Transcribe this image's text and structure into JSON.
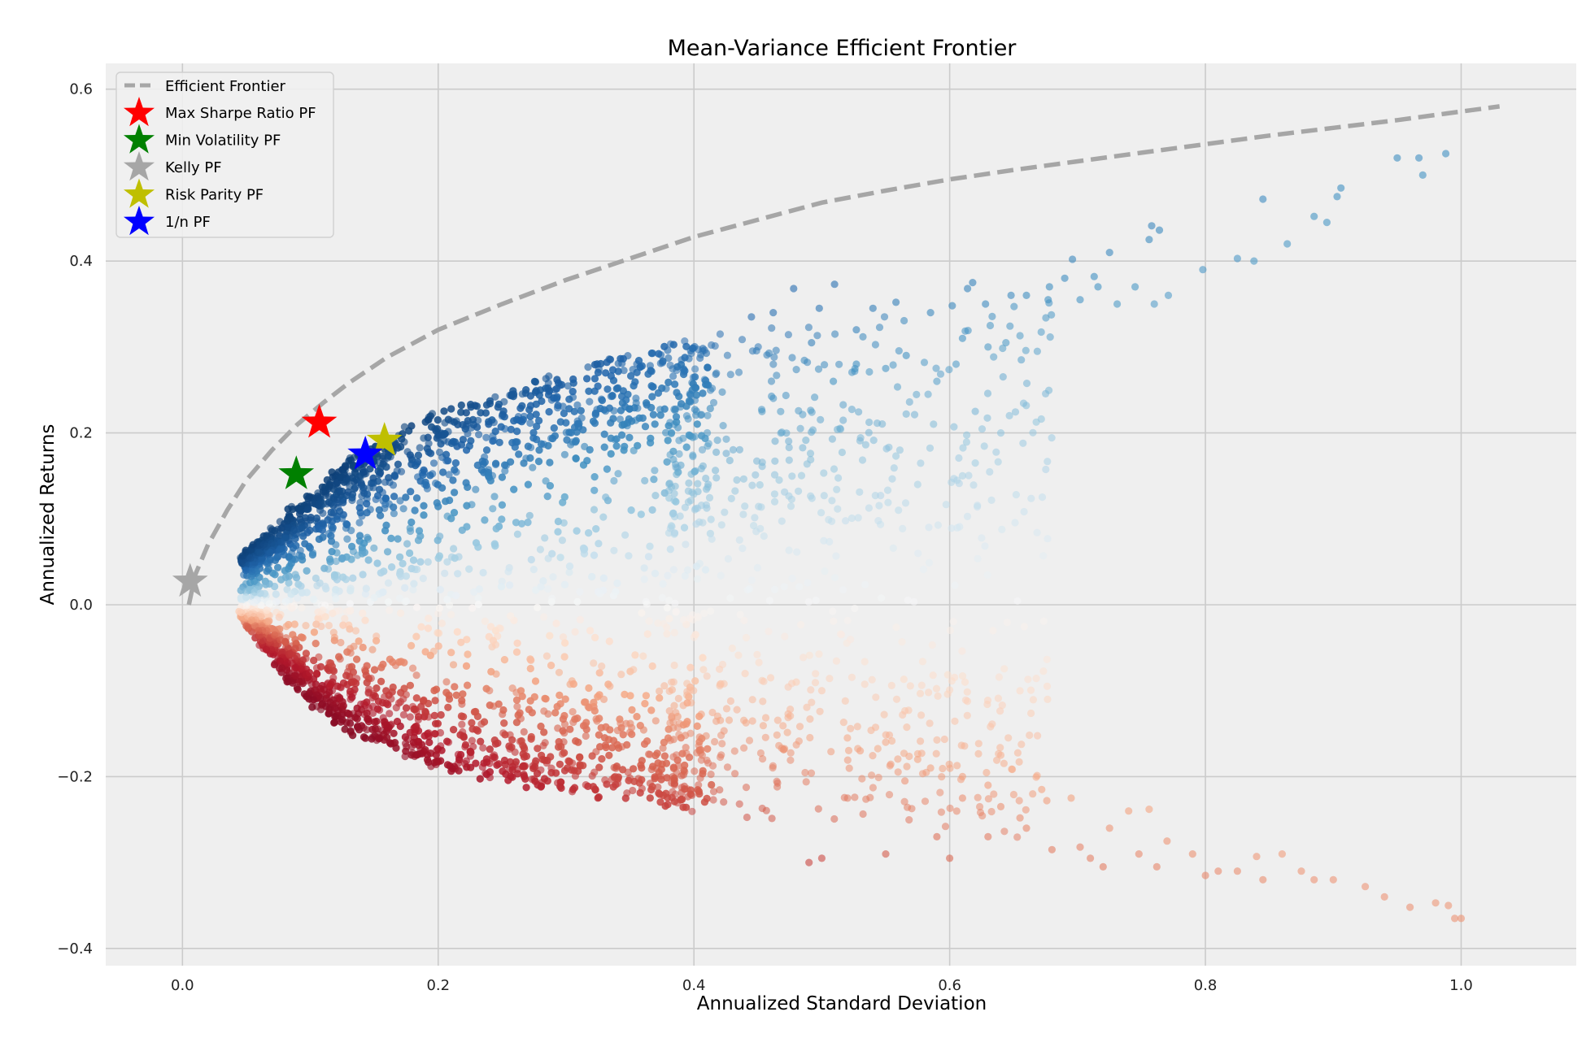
{
  "chart_data": {
    "type": "scatter",
    "title": "Mean-Variance Efficient Frontier",
    "xlabel": "Annualized Standard Deviation",
    "ylabel": "Annualized Returns",
    "xlim": [
      -0.06,
      1.09
    ],
    "ylim": [
      -0.42,
      0.63
    ],
    "x_ticks": [
      0.0,
      0.2,
      0.4,
      0.6,
      0.8,
      1.0
    ],
    "x_tick_labels": [
      "0.0",
      "0.2",
      "0.4",
      "0.6",
      "0.8",
      "1.0"
    ],
    "y_ticks": [
      -0.4,
      -0.2,
      0.0,
      0.2,
      0.4,
      0.6
    ],
    "y_tick_labels": [
      "−0.4",
      "−0.2",
      "0.0",
      "0.2",
      "0.4",
      "0.6"
    ],
    "grid": true,
    "legend_position": "top-left",
    "colormap": "RdBu",
    "colors": {
      "plot_background": "#efefef",
      "grid": "#cbcbcb",
      "frontier": "#a6a6a6",
      "max_sharpe": "#ff0000",
      "min_volatility": "#008000",
      "kelly": "#a6a6a6",
      "risk_parity": "#bfbf00",
      "one_over_n": "#0000ff"
    },
    "frontier": {
      "name": "Efficient Frontier",
      "x": [
        0.005,
        0.01,
        0.02,
        0.035,
        0.05,
        0.07,
        0.09,
        0.11,
        0.13,
        0.16,
        0.2,
        0.25,
        0.3,
        0.35,
        0.4,
        0.45,
        0.5,
        0.55,
        0.6,
        0.65,
        0.7,
        0.75,
        0.8,
        0.85,
        0.9,
        0.95,
        1.0,
        1.03
      ],
      "y": [
        0.0,
        0.035,
        0.07,
        0.11,
        0.145,
        0.18,
        0.21,
        0.235,
        0.258,
        0.288,
        0.32,
        0.35,
        0.378,
        0.403,
        0.428,
        0.448,
        0.468,
        0.482,
        0.495,
        0.506,
        0.516,
        0.526,
        0.536,
        0.546,
        0.555,
        0.564,
        0.574,
        0.58
      ]
    },
    "highlighted_portfolios": [
      {
        "name": "Max Sharpe Ratio PF",
        "x": 0.107,
        "y": 0.212,
        "color": "#ff0000"
      },
      {
        "name": "Min Volatility PF",
        "x": 0.089,
        "y": 0.152,
        "color": "#008000"
      },
      {
        "name": "Kelly PF",
        "x": 0.006,
        "y": 0.027,
        "color": "#a6a6a6"
      },
      {
        "name": "Risk Parity PF",
        "x": 0.158,
        "y": 0.191,
        "color": "#bfbf00"
      },
      {
        "name": "1/n PF",
        "x": 0.143,
        "y": 0.175,
        "color": "#0000ff"
      }
    ],
    "random_portfolios": {
      "envelope_upper": {
        "x": [
          0.05,
          0.07,
          0.1,
          0.14,
          0.2,
          0.26,
          0.33,
          0.4
        ],
        "y": [
          0.06,
          0.085,
          0.13,
          0.18,
          0.225,
          0.255,
          0.285,
          0.31
        ]
      },
      "envelope_lower": {
        "x": [
          0.05,
          0.07,
          0.1,
          0.14,
          0.2,
          0.26,
          0.33,
          0.4
        ],
        "y": [
          -0.015,
          -0.06,
          -0.115,
          -0.155,
          -0.19,
          -0.21,
          -0.225,
          -0.24
        ]
      },
      "sparse_points": [
        [
          0.95,
          0.52
        ],
        [
          0.967,
          0.52
        ],
        [
          0.97,
          0.5
        ],
        [
          0.988,
          0.525
        ],
        [
          0.906,
          0.485
        ],
        [
          0.903,
          0.475
        ],
        [
          0.845,
          0.472
        ],
        [
          0.885,
          0.452
        ],
        [
          0.895,
          0.445
        ],
        [
          0.864,
          0.42
        ],
        [
          0.825,
          0.403
        ],
        [
          0.838,
          0.4
        ],
        [
          0.798,
          0.39
        ],
        [
          0.758,
          0.441
        ],
        [
          0.764,
          0.436
        ],
        [
          0.756,
          0.425
        ],
        [
          0.725,
          0.41
        ],
        [
          0.713,
          0.382
        ],
        [
          0.696,
          0.402
        ],
        [
          0.69,
          0.38
        ],
        [
          0.678,
          0.37
        ],
        [
          0.745,
          0.37
        ],
        [
          0.731,
          0.35
        ],
        [
          0.771,
          0.36
        ],
        [
          0.76,
          0.35
        ],
        [
          0.702,
          0.355
        ],
        [
          0.716,
          0.37
        ],
        [
          0.66,
          0.36
        ],
        [
          0.677,
          0.355
        ],
        [
          0.628,
          0.35
        ],
        [
          0.648,
          0.36
        ],
        [
          0.618,
          0.375
        ],
        [
          0.614,
          0.368
        ],
        [
          0.602,
          0.348
        ],
        [
          0.585,
          0.34
        ],
        [
          0.558,
          0.352
        ],
        [
          0.54,
          0.345
        ],
        [
          0.51,
          0.373
        ],
        [
          0.478,
          0.368
        ],
        [
          0.498,
          0.345
        ],
        [
          0.462,
          0.34
        ],
        [
          0.445,
          0.335
        ],
        [
          0.61,
          0.31
        ],
        [
          0.63,
          0.3
        ],
        [
          0.644,
          0.305
        ],
        [
          0.656,
          0.285
        ],
        [
          0.605,
          0.28
        ],
        [
          0.59,
          0.26
        ],
        [
          0.566,
          0.29
        ],
        [
          0.527,
          0.32
        ],
        [
          0.55,
          0.275
        ],
        [
          0.62,
          0.225
        ],
        [
          0.61,
          0.15
        ],
        [
          0.575,
          0.14
        ],
        [
          0.56,
          0.11
        ],
        [
          0.64,
          0.2
        ],
        [
          0.62,
          0.165
        ],
        [
          0.527,
          0.28
        ],
        [
          0.509,
          0.26
        ],
        [
          0.492,
          0.305
        ],
        [
          0.59,
          -0.27
        ],
        [
          0.63,
          -0.27
        ],
        [
          0.68,
          -0.285
        ],
        [
          0.702,
          -0.282
        ],
        [
          0.71,
          -0.295
        ],
        [
          0.72,
          -0.305
        ],
        [
          0.748,
          -0.29
        ],
        [
          0.762,
          -0.305
        ],
        [
          0.756,
          -0.238
        ],
        [
          0.79,
          -0.29
        ],
        [
          0.77,
          -0.275
        ],
        [
          0.8,
          -0.315
        ],
        [
          0.81,
          -0.31
        ],
        [
          0.825,
          -0.31
        ],
        [
          0.84,
          -0.293
        ],
        [
          0.845,
          -0.32
        ],
        [
          0.86,
          -0.29
        ],
        [
          0.875,
          -0.31
        ],
        [
          0.885,
          -0.32
        ],
        [
          0.9,
          -0.32
        ],
        [
          0.925,
          -0.328
        ],
        [
          0.94,
          -0.34
        ],
        [
          0.96,
          -0.352
        ],
        [
          0.98,
          -0.347
        ],
        [
          0.99,
          -0.35
        ],
        [
          1.0,
          -0.365
        ],
        [
          0.995,
          -0.365
        ],
        [
          0.6,
          -0.295
        ],
        [
          0.55,
          -0.29
        ],
        [
          0.5,
          -0.295
        ],
        [
          0.49,
          -0.3
        ],
        [
          0.655,
          -0.248
        ],
        [
          0.676,
          -0.228
        ],
        [
          0.66,
          -0.26
        ],
        [
          0.63,
          -0.21
        ],
        [
          0.61,
          -0.225
        ],
        [
          0.64,
          -0.235
        ],
        [
          0.695,
          -0.225
        ],
        [
          0.672,
          -0.215
        ],
        [
          0.725,
          -0.26
        ],
        [
          0.74,
          -0.24
        ],
        [
          0.585,
          -0.19
        ],
        [
          0.565,
          -0.205
        ],
        [
          0.575,
          -0.18
        ],
        [
          0.55,
          -0.16
        ],
        [
          0.53,
          -0.17
        ],
        [
          0.52,
          -0.155
        ],
        [
          0.61,
          -0.2
        ],
        [
          0.64,
          -0.175
        ],
        [
          0.5,
          -0.1
        ],
        [
          0.48,
          -0.09
        ],
        [
          0.44,
          -0.08
        ],
        [
          0.46,
          -0.085
        ],
        [
          0.42,
          -0.075
        ]
      ]
    }
  }
}
